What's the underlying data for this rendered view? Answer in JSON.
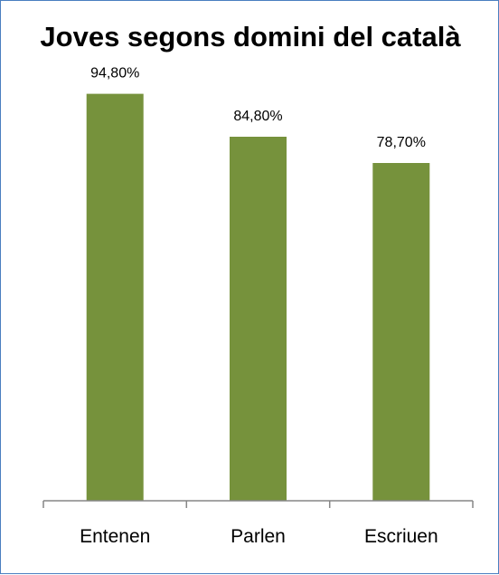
{
  "chart_data": {
    "type": "bar",
    "title": "Joves segons domini del català",
    "categories": [
      "Entenen",
      "Parlen",
      "Escriuen"
    ],
    "values": [
      94.8,
      84.8,
      78.7
    ],
    "value_labels": [
      "94,80%",
      "84,80%",
      "78,70%"
    ],
    "xlabel": "",
    "ylabel": "",
    "ylim": [
      0,
      100
    ],
    "grid": false,
    "legend": "none",
    "bar_color": "#76923c",
    "axis_color": "#868686",
    "frame_color": "#4a7fc0"
  }
}
